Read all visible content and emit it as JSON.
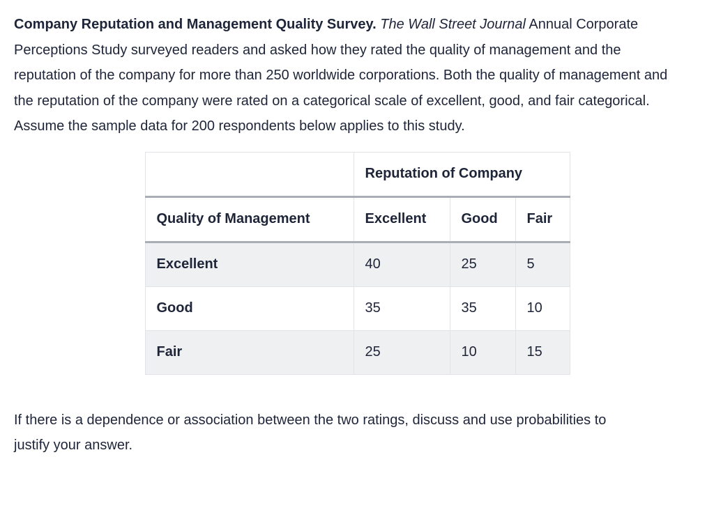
{
  "intro": {
    "bold_title": "Company Reputation and Management Quality Survey.",
    "italic_source": "The Wall Street Journal",
    "body_text": "Annual Corporate Perceptions Study surveyed readers and asked how they rated the quality of management and the reputation of the company for more than 250 worldwide corporations. Both the quality of management and the reputation of the company were rated on a categorical scale of excellent, good, and fair categorical. Assume the sample data for 200 respondents below applies to this study."
  },
  "table": {
    "span_header": "Reputation of Company",
    "row_dimension_label": "Quality of Management",
    "columns": [
      "Excellent",
      "Good",
      "Fair"
    ],
    "rows": [
      {
        "label": "Excellent",
        "values": [
          "40",
          "25",
          "5"
        ]
      },
      {
        "label": "Good",
        "values": [
          "35",
          "35",
          "10"
        ]
      },
      {
        "label": "Fair",
        "values": [
          "25",
          "10",
          "15"
        ]
      }
    ]
  },
  "question": {
    "text": "If there is a dependence or association between the two ratings, discuss and use probabilities to justify your answer."
  },
  "theme": {
    "text_color": "#1e2538",
    "row_shade_color": "#eff0f2",
    "cell_border_color": "#e1e3e7",
    "header_divider_color": "#a9adb4",
    "background_color": "#ffffff"
  }
}
